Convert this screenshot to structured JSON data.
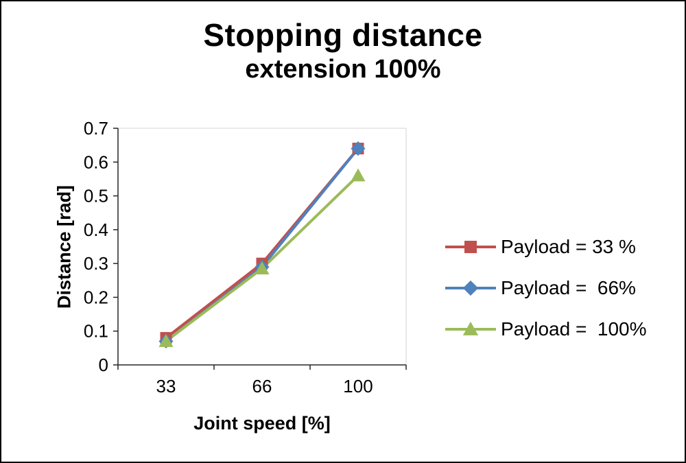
{
  "chart_data": {
    "type": "line",
    "title": "Stopping distance",
    "subtitle": "extension 100%",
    "xlabel": "Joint speed [%]",
    "ylabel": "Distance [rad]",
    "categories": [
      "33",
      "66",
      "100"
    ],
    "ylim": [
      0,
      0.7
    ],
    "ytick_step": 0.1,
    "ytick_labels": [
      "0",
      "0.1",
      "0.2",
      "0.3",
      "0.4",
      "0.5",
      "0.6",
      "0.7"
    ],
    "grid": false,
    "legend_position": "right",
    "series": [
      {
        "name": "Payload = 33 %",
        "color": "#C0504D",
        "marker": "square",
        "values": [
          0.08,
          0.3,
          0.64
        ]
      },
      {
        "name": "Payload =  66%",
        "color": "#4F81BD",
        "marker": "diamond",
        "values": [
          0.07,
          0.29,
          0.64
        ]
      },
      {
        "name": "Payload =  100%",
        "color": "#9BBB59",
        "marker": "triangle",
        "values": [
          0.07,
          0.285,
          0.56
        ]
      }
    ]
  }
}
